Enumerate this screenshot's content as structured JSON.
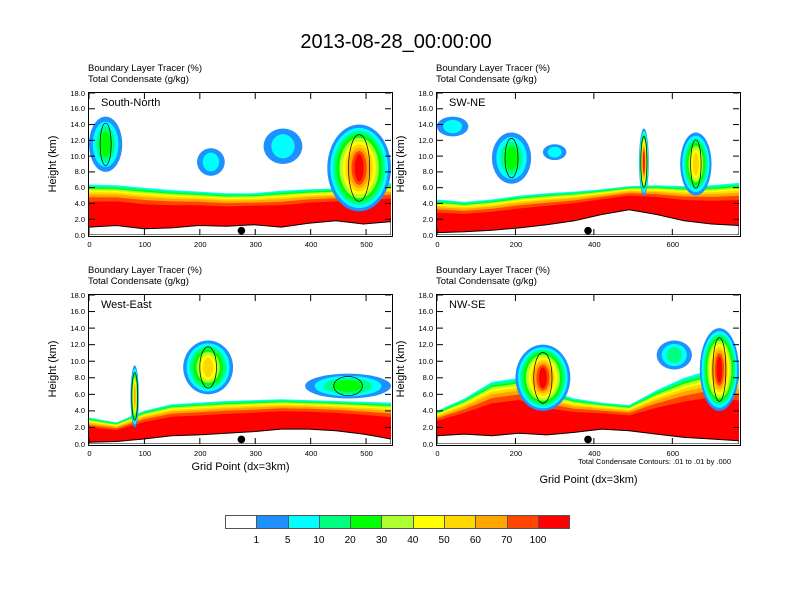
{
  "title": "2013-08-28_00:00:00",
  "panel_titles": {
    "line1": "Boundary Layer Tracer   (%)",
    "line2": "Total Condensate   (g/kg)"
  },
  "ylabel": "Height (km)",
  "xlabel": "Grid Point (dx=3km)",
  "contour_note": "Total Condensate Contours: .01 to .01 by .000",
  "colorbar": {
    "colors": [
      "#ffffff",
      "#1e90ff",
      "#00ffff",
      "#00ff80",
      "#00ff00",
      "#adff2f",
      "#ffff00",
      "#ffd700",
      "#ffa500",
      "#ff4500",
      "#ff0000"
    ],
    "labels": [
      "1",
      "5",
      "10",
      "20",
      "30",
      "40",
      "50",
      "60",
      "70",
      "100"
    ]
  },
  "chart_data": [
    {
      "type": "heatmap",
      "name": "South-North",
      "title": "Boundary Layer Tracer (%) / Total Condensate (g/kg)",
      "xlabel": "",
      "ylabel": "Height (km)",
      "xlim": [
        0,
        545
      ],
      "ylim": [
        0,
        18
      ],
      "xticks": [
        "0",
        "100",
        "200",
        "300",
        "400",
        "500"
      ],
      "yticks": [
        "0.0",
        "2.0",
        "4.0",
        "6.0",
        "8.0",
        "10.0",
        "12.0",
        "14.0",
        "16.0",
        "18.0"
      ],
      "marker_x": 275,
      "contour_label": ".01",
      "pbl_top_km": [
        6.4,
        6.3,
        6.0,
        5.7,
        5.5,
        5.3,
        5.3,
        5.6,
        5.8,
        5.9,
        6.3,
        6.6
      ],
      "terrain_km": [
        1.0,
        1.2,
        0.8,
        0.9,
        1.2,
        1.1,
        1.3,
        1.0,
        1.5,
        1.8,
        1.4,
        1.7
      ],
      "clouds": [
        {
          "x": [
            0,
            60
          ],
          "y": [
            8,
            15
          ],
          "max_pct": 20
        },
        {
          "x": [
            195,
            245
          ],
          "y": [
            7.5,
            11
          ],
          "max_pct": 5
        },
        {
          "x": [
            315,
            385
          ],
          "y": [
            9,
            13.5
          ],
          "max_pct": 5
        },
        {
          "x": [
            430,
            545
          ],
          "y": [
            3,
            14
          ],
          "max_pct": 100
        }
      ]
    },
    {
      "type": "heatmap",
      "name": "SW-NE",
      "title": "Boundary Layer Tracer (%) / Total Condensate (g/kg)",
      "xlabel": "",
      "ylabel": "Height (km)",
      "xlim": [
        0,
        770
      ],
      "ylim": [
        0,
        18
      ],
      "xticks": [
        "0",
        "200",
        "400",
        "600"
      ],
      "yticks": [
        "0.0",
        "2.0",
        "4.0",
        "6.0",
        "8.0",
        "10.0",
        "12.0",
        "14.0",
        "16.0",
        "18.0"
      ],
      "marker_x": 385,
      "pbl_top_km": [
        4.5,
        4.2,
        4.5,
        5.0,
        5.3,
        5.5,
        5.8,
        6.2,
        6.3,
        6.2,
        6.3,
        6.6
      ],
      "terrain_km": [
        0.3,
        0.4,
        0.6,
        0.9,
        1.3,
        1.8,
        2.6,
        3.2,
        2.6,
        1.8,
        1.4,
        1.2
      ],
      "clouds": [
        {
          "x": [
            0,
            80
          ],
          "y": [
            12.5,
            15
          ],
          "max_pct": 5
        },
        {
          "x": [
            140,
            240
          ],
          "y": [
            6.5,
            13
          ],
          "max_pct": 20
        },
        {
          "x": [
            270,
            330
          ],
          "y": [
            9.5,
            11.5
          ],
          "max_pct": 5
        },
        {
          "x": [
            515,
            540
          ],
          "y": [
            5,
            13.5
          ],
          "max_pct": 100
        },
        {
          "x": [
            620,
            700
          ],
          "y": [
            5,
            13
          ],
          "max_pct": 50
        }
      ]
    },
    {
      "type": "heatmap",
      "name": "West-East",
      "title": "Boundary Layer Tracer (%) / Total Condensate (g/kg)",
      "xlabel": "Grid Point (dx=3km)",
      "ylabel": "Height (km)",
      "xlim": [
        0,
        545
      ],
      "ylim": [
        0,
        18
      ],
      "xticks": [
        "0",
        "100",
        "200",
        "300",
        "400",
        "500"
      ],
      "yticks": [
        "0.0",
        "2.0",
        "4.0",
        "6.0",
        "8.0",
        "10.0",
        "12.0",
        "14.0",
        "16.0",
        "18.0"
      ],
      "marker_x": 275,
      "pbl_top_km": [
        3.2,
        2.6,
        4.0,
        4.8,
        5.0,
        5.2,
        5.3,
        5.4,
        5.3,
        5.2,
        5.1,
        5.0
      ],
      "terrain_km": [
        0.2,
        0.3,
        0.6,
        1.0,
        1.1,
        1.3,
        1.5,
        1.8,
        1.8,
        1.6,
        1.2,
        0.6
      ],
      "clouds": [
        {
          "x": [
            75,
            90
          ],
          "y": [
            2,
            9.5
          ],
          "max_pct": 60
        },
        {
          "x": [
            170,
            260
          ],
          "y": [
            6,
            12.5
          ],
          "max_pct": 50
        },
        {
          "x": [
            390,
            545
          ],
          "y": [
            5.5,
            8.5
          ],
          "max_pct": 20
        }
      ]
    },
    {
      "type": "heatmap",
      "name": "NW-SE",
      "title": "Boundary Layer Tracer (%) / Total Condensate (g/kg)",
      "xlabel": "Grid Point (dx=3km)",
      "ylabel": "Height (km)",
      "xlim": [
        0,
        770
      ],
      "ylim": [
        0,
        18
      ],
      "xticks": [
        "0",
        "200",
        "400",
        "600"
      ],
      "yticks": [
        "0.0",
        "2.0",
        "4.0",
        "6.0",
        "8.0",
        "10.0",
        "12.0",
        "14.0",
        "16.0",
        "18.0"
      ],
      "marker_x": 385,
      "contour_label": ".01",
      "pbl_top_km": [
        4.0,
        5.5,
        7.5,
        8.0,
        6.5,
        5.5,
        5.0,
        4.7,
        6.5,
        8.0,
        9.0,
        8.5
      ],
      "terrain_km": [
        1.0,
        1.2,
        1.0,
        1.3,
        1.1,
        1.4,
        1.8,
        1.6,
        1.2,
        0.8,
        0.6,
        0.4
      ],
      "clouds": [
        {
          "x": [
            200,
            340
          ],
          "y": [
            4,
            12
          ],
          "max_pct": 100
        },
        {
          "x": [
            560,
            650
          ],
          "y": [
            9,
            12.5
          ],
          "max_pct": 10
        },
        {
          "x": [
            670,
            770
          ],
          "y": [
            4,
            14
          ],
          "max_pct": 100
        }
      ]
    }
  ]
}
